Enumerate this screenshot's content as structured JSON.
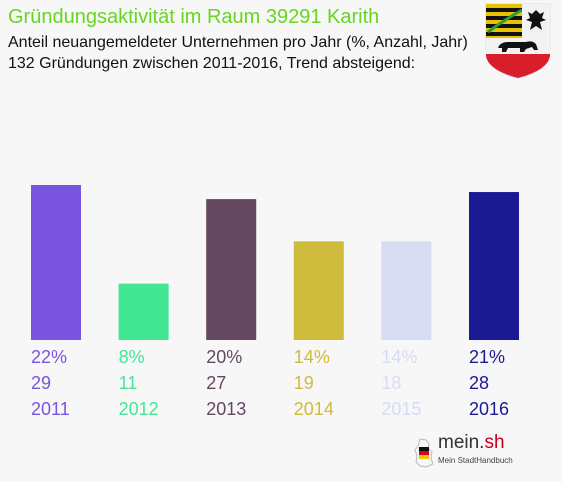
{
  "header": {
    "title": "Gründungsaktivität im Raum 39291 Karith",
    "subtitle_line1": "Anteil neuangemeldeter Unternehmen pro Jahr (%, Anzahl, Jahr)",
    "subtitle_line2": "132 Gründungen zwischen 2011-2016, Trend absteigend:"
  },
  "branding": {
    "logo_text": "mein.",
    "logo_text_accent": "sh",
    "logo_tagline": "Mein StadtHandbuch",
    "crest_icon": "saxony-anhalt-coat-of-arms-icon",
    "map_icon": "germany-map-icon"
  },
  "colors": {
    "title": "#66d61f",
    "2011": "#7a55e0",
    "2012": "#43e695",
    "2013": "#634860",
    "2014": "#cfbb3c",
    "2015": "#d8dcf3",
    "2016": "#1b1a93"
  },
  "chart_data": {
    "type": "bar",
    "title": "Gründungsaktivität im Raum 39291 Karith",
    "categories": [
      "2011",
      "2012",
      "2013",
      "2014",
      "2015",
      "2016"
    ],
    "values_percent": [
      22,
      8,
      20,
      14,
      14,
      21
    ],
    "counts": [
      29,
      11,
      27,
      19,
      18,
      28
    ],
    "percent_labels": [
      "22%",
      "8%",
      "20%",
      "14%",
      "14%",
      "21%"
    ],
    "total": 132,
    "trend": "absteigend",
    "bar_colors": [
      "#7a55e0",
      "#43e695",
      "#634860",
      "#cfbb3c",
      "#d8dcf3",
      "#1b1a93"
    ],
    "grid": false,
    "legend": "none"
  }
}
